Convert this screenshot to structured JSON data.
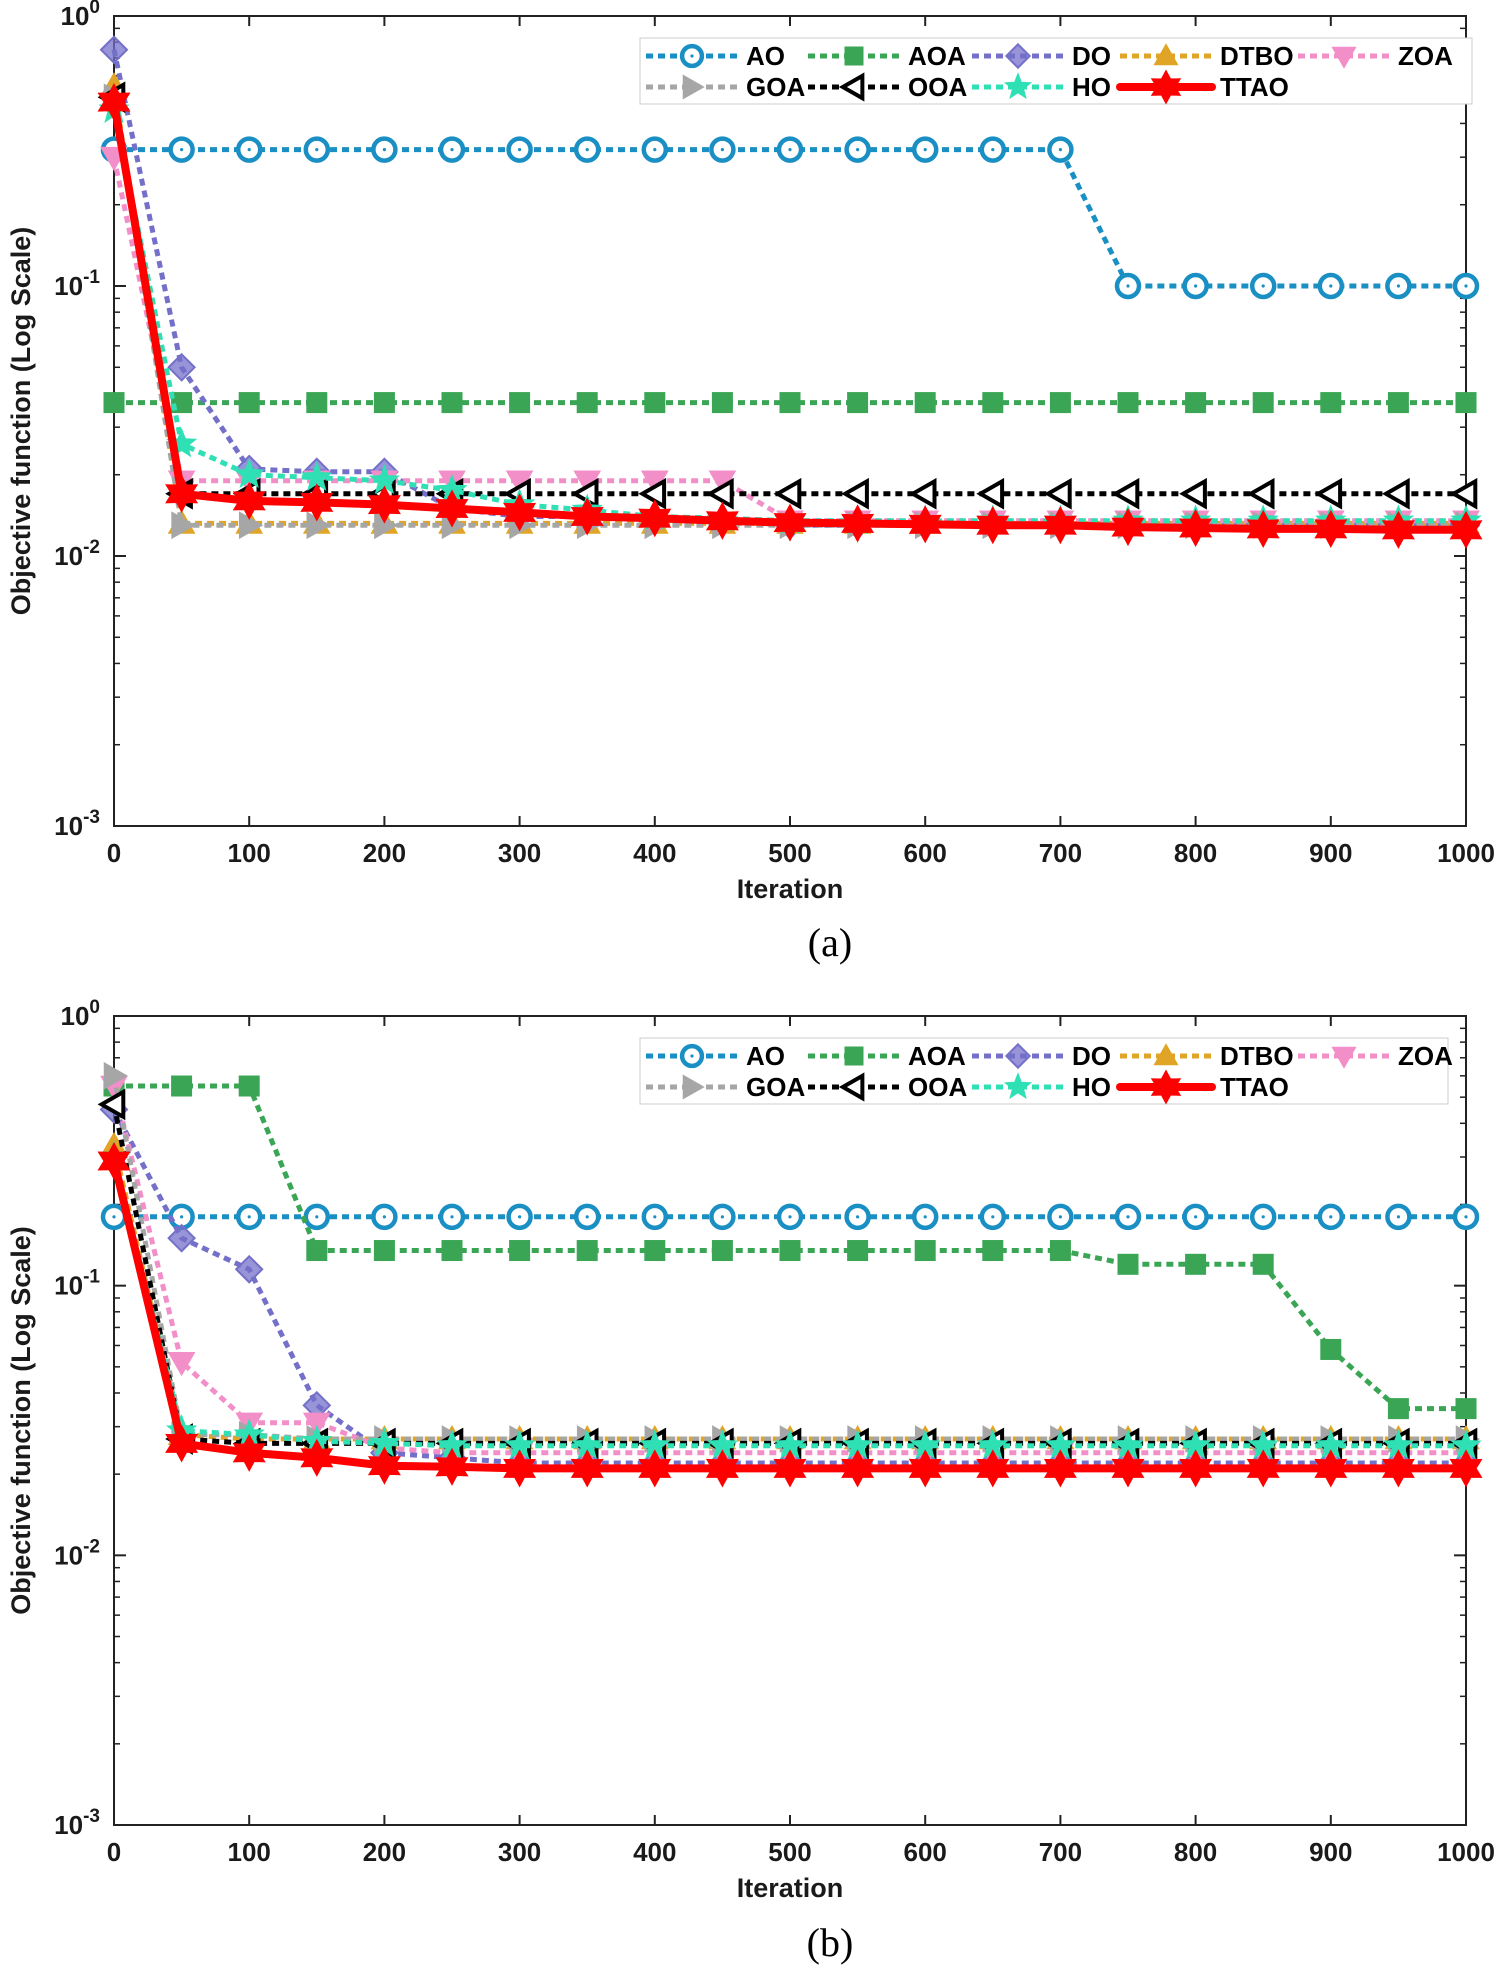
{
  "series_styles": {
    "AO": {
      "color": "#1a8fc3",
      "marker": "circle-dot",
      "dash": "dotted"
    },
    "AOA": {
      "color": "#3aa655",
      "marker": "square",
      "dash": "dotted"
    },
    "DO": {
      "color": "#7470c9",
      "marker": "diamond",
      "dash": "dotted"
    },
    "DTBO": {
      "color": "#e0a526",
      "marker": "triangle-up",
      "dash": "dotted"
    },
    "ZOA": {
      "color": "#f28fc8",
      "marker": "triangle-down",
      "dash": "dotted"
    },
    "GOA": {
      "color": "#a6a6a6",
      "marker": "triangle-right",
      "dash": "dotted"
    },
    "OOA": {
      "color": "#000000",
      "marker": "triangle-left",
      "dash": "dotted"
    },
    "HO": {
      "color": "#2ee0b4",
      "marker": "star",
      "dash": "dotted"
    },
    "TTAO": {
      "color": "#ff0000",
      "marker": "hexagram",
      "dash": "solid"
    }
  },
  "chart_data": [
    {
      "type": "line",
      "caption": "(a)",
      "xlabel": "Iteration",
      "ylabel": "Objective function (Log Scale)",
      "yscale": "log",
      "ylim": [
        0.001,
        1
      ],
      "xlim": [
        0,
        1000
      ],
      "x_ticks": [
        "0",
        "100",
        "200",
        "300",
        "400",
        "500",
        "600",
        "700",
        "800",
        "900",
        "1000"
      ],
      "y_ticks": [
        {
          "base": "10",
          "exp": "0"
        },
        {
          "base": "10",
          "exp": "-1"
        },
        {
          "base": "10",
          "exp": "-2"
        },
        {
          "base": "10",
          "exp": "-3"
        }
      ],
      "legend_order": [
        "AO",
        "AOA",
        "DO",
        "DTBO",
        "ZOA",
        "GOA",
        "OOA",
        "HO",
        "TTAO"
      ],
      "x": [
        0,
        50,
        100,
        150,
        200,
        250,
        300,
        350,
        400,
        450,
        500,
        550,
        600,
        650,
        700,
        750,
        800,
        850,
        900,
        950,
        1000
      ],
      "series": [
        {
          "name": "AO",
          "values": [
            0.32,
            0.32,
            0.32,
            0.32,
            0.32,
            0.32,
            0.32,
            0.32,
            0.32,
            0.32,
            0.32,
            0.32,
            0.32,
            0.32,
            0.32,
            0.1,
            0.1,
            0.1,
            0.1,
            0.1,
            0.1
          ]
        },
        {
          "name": "AOA",
          "values": [
            0.037,
            0.037,
            0.037,
            0.037,
            0.037,
            0.037,
            0.037,
            0.037,
            0.037,
            0.037,
            0.037,
            0.037,
            0.037,
            0.037,
            0.037,
            0.037,
            0.037,
            0.037,
            0.037,
            0.037,
            0.037
          ]
        },
        {
          "name": "DO",
          "values": [
            0.75,
            0.05,
            0.021,
            0.0205,
            0.0205,
            0.015,
            0.014,
            0.014,
            0.0138,
            0.0135,
            0.013,
            0.013,
            0.013,
            0.013,
            0.013,
            0.013,
            0.013,
            0.013,
            0.013,
            0.013,
            0.013
          ]
        },
        {
          "name": "DTBO",
          "values": [
            0.55,
            0.0132,
            0.0132,
            0.0132,
            0.0132,
            0.0132,
            0.0132,
            0.0132,
            0.0132,
            0.0132,
            0.0132,
            0.0132,
            0.0132,
            0.0132,
            0.0132,
            0.0132,
            0.0132,
            0.0132,
            0.0132,
            0.0132,
            0.0132
          ]
        },
        {
          "name": "ZOA",
          "values": [
            0.3,
            0.019,
            0.019,
            0.019,
            0.019,
            0.019,
            0.019,
            0.019,
            0.019,
            0.019,
            0.0135,
            0.0135,
            0.0135,
            0.0135,
            0.0135,
            0.0135,
            0.0135,
            0.0135,
            0.0135,
            0.0135,
            0.0135
          ]
        },
        {
          "name": "GOA",
          "values": [
            0.5,
            0.013,
            0.013,
            0.013,
            0.013,
            0.013,
            0.013,
            0.013,
            0.013,
            0.013,
            0.013,
            0.013,
            0.013,
            0.013,
            0.013,
            0.013,
            0.013,
            0.013,
            0.013,
            0.013,
            0.013
          ]
        },
        {
          "name": "OOA",
          "values": [
            0.5,
            0.017,
            0.017,
            0.017,
            0.017,
            0.017,
            0.017,
            0.017,
            0.017,
            0.017,
            0.017,
            0.017,
            0.017,
            0.017,
            0.017,
            0.017,
            0.017,
            0.017,
            0.017,
            0.017,
            0.017
          ]
        },
        {
          "name": "HO",
          "values": [
            0.45,
            0.026,
            0.02,
            0.0195,
            0.019,
            0.0175,
            0.0155,
            0.0148,
            0.014,
            0.0138,
            0.0135,
            0.0135,
            0.0135,
            0.0135,
            0.0135,
            0.0135,
            0.0135,
            0.0135,
            0.0135,
            0.0135,
            0.0135
          ]
        },
        {
          "name": "TTAO",
          "values": [
            0.48,
            0.017,
            0.016,
            0.0158,
            0.0155,
            0.015,
            0.0145,
            0.014,
            0.0138,
            0.0135,
            0.0133,
            0.0132,
            0.0131,
            0.013,
            0.013,
            0.0128,
            0.0127,
            0.0126,
            0.0126,
            0.0125,
            0.0125
          ]
        }
      ]
    },
    {
      "type": "line",
      "caption": "(b)",
      "xlabel": "Iteration",
      "ylabel": "Objective function (Log Scale)",
      "yscale": "log",
      "ylim": [
        0.001,
        1
      ],
      "xlim": [
        0,
        1000
      ],
      "x_ticks": [
        "0",
        "100",
        "200",
        "300",
        "400",
        "500",
        "600",
        "700",
        "800",
        "900",
        "1000"
      ],
      "y_ticks": [
        {
          "base": "10",
          "exp": "0"
        },
        {
          "base": "10",
          "exp": "-1"
        },
        {
          "base": "10",
          "exp": "-2"
        },
        {
          "base": "10",
          "exp": "-3"
        }
      ],
      "legend_order": [
        "AO",
        "AOA",
        "DO",
        "DTBO",
        "ZOA",
        "GOA",
        "OOA",
        "HO",
        "TTAO"
      ],
      "x": [
        0,
        50,
        100,
        150,
        200,
        250,
        300,
        350,
        400,
        450,
        500,
        550,
        600,
        650,
        700,
        750,
        800,
        850,
        900,
        950,
        1000
      ],
      "series": [
        {
          "name": "AO",
          "values": [
            0.18,
            0.18,
            0.18,
            0.18,
            0.18,
            0.18,
            0.18,
            0.18,
            0.18,
            0.18,
            0.18,
            0.18,
            0.18,
            0.18,
            0.18,
            0.18,
            0.18,
            0.18,
            0.18,
            0.18,
            0.18
          ]
        },
        {
          "name": "AOA",
          "values": [
            0.55,
            0.55,
            0.55,
            0.135,
            0.135,
            0.135,
            0.135,
            0.135,
            0.135,
            0.135,
            0.135,
            0.135,
            0.135,
            0.135,
            0.135,
            0.12,
            0.12,
            0.12,
            0.058,
            0.035,
            0.035
          ]
        },
        {
          "name": "DO",
          "values": [
            0.45,
            0.15,
            0.115,
            0.036,
            0.024,
            0.023,
            0.022,
            0.022,
            0.022,
            0.022,
            0.022,
            0.022,
            0.022,
            0.022,
            0.022,
            0.022,
            0.022,
            0.022,
            0.022,
            0.022,
            0.022
          ]
        },
        {
          "name": "DTBO",
          "values": [
            0.33,
            0.028,
            0.027,
            0.027,
            0.027,
            0.027,
            0.027,
            0.027,
            0.027,
            0.027,
            0.027,
            0.027,
            0.027,
            0.027,
            0.027,
            0.027,
            0.027,
            0.027,
            0.027,
            0.027,
            0.027
          ]
        },
        {
          "name": "ZOA",
          "values": [
            0.55,
            0.052,
            0.031,
            0.031,
            0.025,
            0.024,
            0.024,
            0.024,
            0.024,
            0.024,
            0.024,
            0.024,
            0.024,
            0.024,
            0.024,
            0.024,
            0.024,
            0.024,
            0.024,
            0.024,
            0.024
          ]
        },
        {
          "name": "GOA",
          "values": [
            0.6,
            0.028,
            0.028,
            0.027,
            0.027,
            0.027,
            0.027,
            0.027,
            0.027,
            0.027,
            0.027,
            0.027,
            0.027,
            0.027,
            0.027,
            0.027,
            0.027,
            0.027,
            0.027,
            0.027,
            0.027
          ]
        },
        {
          "name": "OOA",
          "values": [
            0.47,
            0.027,
            0.026,
            0.026,
            0.026,
            0.026,
            0.026,
            0.026,
            0.026,
            0.026,
            0.026,
            0.026,
            0.026,
            0.026,
            0.026,
            0.026,
            0.026,
            0.026,
            0.026,
            0.026,
            0.026
          ]
        },
        {
          "name": "HO",
          "values": [
            0.3,
            0.029,
            0.028,
            0.0265,
            0.026,
            0.0255,
            0.0255,
            0.0255,
            0.0255,
            0.0255,
            0.0255,
            0.0255,
            0.0255,
            0.0255,
            0.0255,
            0.0255,
            0.0255,
            0.0255,
            0.0255,
            0.0255,
            0.0255
          ]
        },
        {
          "name": "TTAO",
          "values": [
            0.29,
            0.026,
            0.024,
            0.023,
            0.0215,
            0.0213,
            0.021,
            0.021,
            0.021,
            0.021,
            0.021,
            0.021,
            0.021,
            0.021,
            0.021,
            0.021,
            0.021,
            0.021,
            0.021,
            0.021,
            0.021
          ]
        }
      ]
    }
  ]
}
